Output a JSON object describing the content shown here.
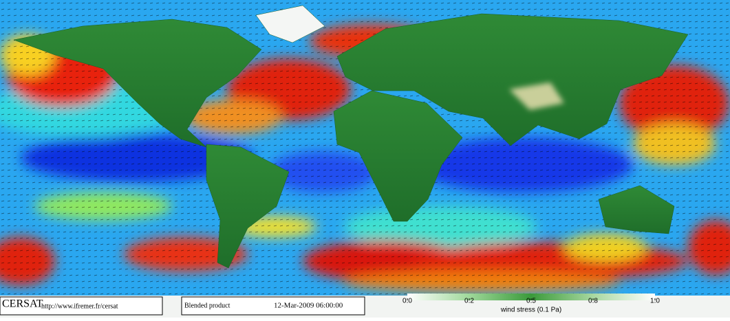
{
  "header": {
    "logo": "CERSAT",
    "url": "http://www.ifremer.fr/cersat",
    "product": "Blended product",
    "date": "12-Mar-2009 06:00:00"
  },
  "colorbar": {
    "label": "wind stress (0.1 Pa)",
    "ticks": [
      {
        "value": 0,
        "label": "0.0"
      },
      0.2,
      0.5,
      0.8,
      {
        "value": 1,
        "label": "1.0"
      }
    ]
  }
}
